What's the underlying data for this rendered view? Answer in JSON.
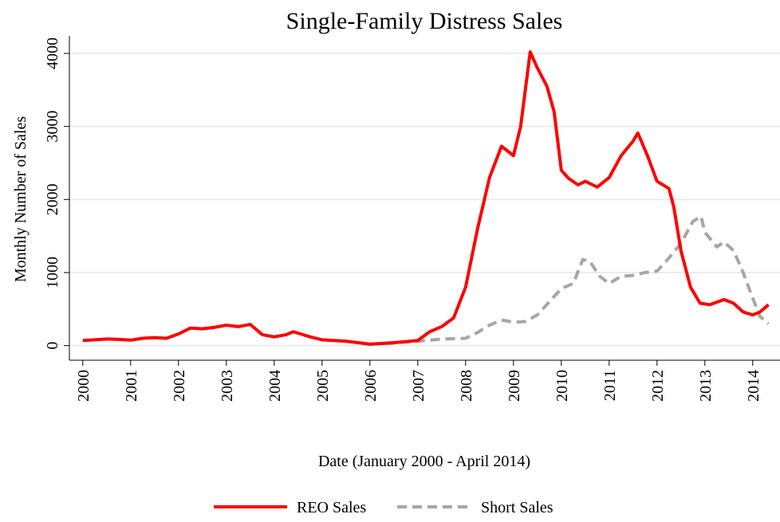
{
  "chart_data": {
    "type": "line",
    "title": "Single-Family Distress Sales",
    "x_label": "Date (January 2000 - April 2014)",
    "y_label": "Monthly Number of Sales",
    "xlim": [
      1999.72,
      2014.57
    ],
    "xticks": [
      2000,
      2001,
      2002,
      2003,
      2004,
      2005,
      2006,
      2007,
      2008,
      2009,
      2010,
      2011,
      2012,
      2013,
      2014
    ],
    "ylim": [
      -200,
      4240
    ],
    "yticks": [
      0,
      1000,
      2000,
      3000,
      4000
    ],
    "grid": true,
    "legend": "bottom",
    "series": [
      {
        "name": "REO Sales",
        "color": "#ff0000",
        "dash": false,
        "x": [
          2000.0,
          2000.25,
          2000.5,
          2000.75,
          2001.0,
          2001.25,
          2001.5,
          2001.75,
          2002.0,
          2002.25,
          2002.5,
          2002.75,
          2003.0,
          2003.25,
          2003.5,
          2003.75,
          2004.0,
          2004.25,
          2004.4,
          2004.75,
          2005.0,
          2005.5,
          2006.0,
          2006.5,
          2007.0,
          2007.25,
          2007.5,
          2007.75,
          2008.0,
          2008.25,
          2008.5,
          2008.75,
          2009.0,
          2009.15,
          2009.35,
          2009.5,
          2009.7,
          2009.85,
          2010.0,
          2010.15,
          2010.35,
          2010.5,
          2010.75,
          2011.0,
          2011.25,
          2011.5,
          2011.6,
          2011.8,
          2012.0,
          2012.25,
          2012.35,
          2012.5,
          2012.7,
          2012.9,
          2013.1,
          2013.4,
          2013.6,
          2013.8,
          2014.0,
          2014.15,
          2014.33
        ],
        "values": [
          70,
          80,
          90,
          85,
          75,
          100,
          110,
          100,
          160,
          240,
          230,
          250,
          280,
          260,
          290,
          150,
          120,
          150,
          190,
          120,
          80,
          60,
          20,
          40,
          70,
          190,
          260,
          380,
          800,
          1600,
          2300,
          2730,
          2600,
          3000,
          4020,
          3800,
          3550,
          3200,
          2400,
          2290,
          2200,
          2250,
          2170,
          2300,
          2600,
          2800,
          2910,
          2600,
          2250,
          2150,
          1900,
          1300,
          800,
          580,
          560,
          630,
          580,
          460,
          420,
          460,
          560
        ]
      },
      {
        "name": "Short Sales",
        "color": "#a6a6a6",
        "dash": true,
        "x": [
          2006.0,
          2006.5,
          2007.0,
          2007.5,
          2008.0,
          2008.25,
          2008.5,
          2008.75,
          2009.0,
          2009.25,
          2009.5,
          2009.75,
          2010.0,
          2010.25,
          2010.45,
          2010.6,
          2010.8,
          2011.0,
          2011.25,
          2011.5,
          2011.75,
          2012.0,
          2012.25,
          2012.5,
          2012.75,
          2012.92,
          2013.0,
          2013.25,
          2013.4,
          2013.6,
          2013.8,
          2014.0,
          2014.15,
          2014.33
        ],
        "values": [
          20,
          35,
          60,
          90,
          100,
          180,
          280,
          350,
          320,
          330,
          420,
          600,
          780,
          850,
          1180,
          1150,
          950,
          850,
          950,
          960,
          1000,
          1020,
          1200,
          1400,
          1700,
          1770,
          1550,
          1350,
          1420,
          1300,
          1000,
          650,
          400,
          300
        ]
      }
    ]
  }
}
